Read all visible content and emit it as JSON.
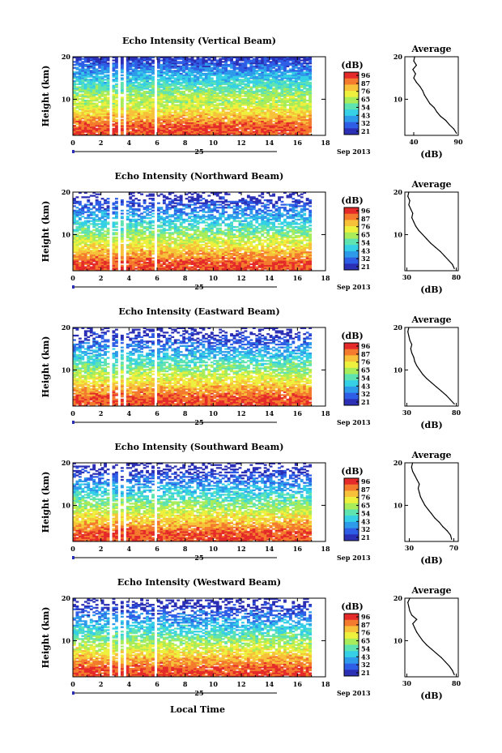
{
  "chart_data": {
    "type": "heatmap",
    "xaxis": {
      "label": "Local Time",
      "date_label": "Sep 2013",
      "day_label": "25",
      "ticks": [
        0,
        2,
        4,
        6,
        8,
        10,
        12,
        14,
        16,
        18
      ],
      "range": [
        0,
        18
      ]
    },
    "colorbar": {
      "unit": "(dB)",
      "ticks": [
        "96",
        "87",
        "76",
        "65",
        "54",
        "43",
        "32",
        "21"
      ],
      "range": [
        21,
        96
      ],
      "colors": [
        "#2b2fb5",
        "#2f5ee6",
        "#2e9bea",
        "#35d0e6",
        "#5fe3b0",
        "#a8ec5a",
        "#eef03e",
        "#f7c23a",
        "#f47a2e",
        "#e52a2a"
      ]
    },
    "panels": [
      {
        "title": "Echo Intensity (Vertical Beam)",
        "ylabel": "Height (km)",
        "yticks": [
          10,
          20
        ],
        "ylim": [
          1.5,
          20
        ],
        "gaps": [
          [
            2.6,
            2.9
          ],
          [
            3.3,
            3.5
          ],
          [
            3.7,
            3.9
          ],
          [
            5.8,
            6.0
          ]
        ],
        "data_end": 16.8,
        "profile": {
          "title": "Average",
          "xlabel": "(dB)",
          "xticks": [
            40,
            90
          ],
          "xlim": [
            30,
            90
          ],
          "points": [
            [
              2,
              88
            ],
            [
              3,
              85
            ],
            [
              4,
              80
            ],
            [
              5,
              76
            ],
            [
              6,
              70
            ],
            [
              7,
              66
            ],
            [
              8,
              63
            ],
            [
              9,
              58
            ],
            [
              10,
              55
            ],
            [
              11,
              52
            ],
            [
              12,
              50
            ],
            [
              13,
              47
            ],
            [
              14,
              43
            ],
            [
              15,
              40
            ],
            [
              16,
              42
            ],
            [
              17,
              39
            ],
            [
              18,
              43
            ],
            [
              19,
              40
            ],
            [
              20,
              41
            ]
          ]
        }
      },
      {
        "title": "Echo Intensity (Northward Beam)",
        "ylabel": "Height (km)",
        "yticks": [
          10,
          20
        ],
        "ylim": [
          1.5,
          20
        ],
        "gaps": [
          [
            2.6,
            2.9
          ],
          [
            3.3,
            3.5
          ],
          [
            3.7,
            3.9
          ],
          [
            5.8,
            6.0
          ]
        ],
        "data_end": 16.8,
        "profile": {
          "title": "Average",
          "xlabel": "(dB)",
          "xticks": [
            30,
            80
          ],
          "xlim": [
            28,
            82
          ],
          "points": [
            [
              2,
              78
            ],
            [
              3,
              76
            ],
            [
              4,
              72
            ],
            [
              5,
              68
            ],
            [
              6,
              64
            ],
            [
              7,
              59
            ],
            [
              8,
              54
            ],
            [
              9,
              50
            ],
            [
              10,
              46
            ],
            [
              11,
              42
            ],
            [
              12,
              39
            ],
            [
              13,
              37
            ],
            [
              14,
              35
            ],
            [
              15,
              36
            ],
            [
              16,
              34
            ],
            [
              17,
              32
            ],
            [
              18,
              33
            ],
            [
              19,
              31
            ],
            [
              20,
              32
            ]
          ]
        }
      },
      {
        "title": "Echo Intensity (Eastward Beam)",
        "ylabel": "Height (km)",
        "yticks": [
          10,
          20
        ],
        "ylim": [
          1.5,
          20
        ],
        "gaps": [
          [
            2.6,
            2.9
          ],
          [
            3.3,
            3.5
          ],
          [
            3.7,
            3.9
          ],
          [
            5.8,
            6.0
          ]
        ],
        "data_end": 16.8,
        "profile": {
          "title": "Average",
          "xlabel": "(dB)",
          "xticks": [
            30,
            80
          ],
          "xlim": [
            28,
            82
          ],
          "points": [
            [
              2,
              78
            ],
            [
              3,
              74
            ],
            [
              4,
              70
            ],
            [
              5,
              65
            ],
            [
              6,
              60
            ],
            [
              7,
              55
            ],
            [
              8,
              50
            ],
            [
              9,
              46
            ],
            [
              10,
              43
            ],
            [
              11,
              40
            ],
            [
              12,
              38
            ],
            [
              13,
              37
            ],
            [
              14,
              35
            ],
            [
              15,
              34
            ],
            [
              16,
              35
            ],
            [
              17,
              33
            ],
            [
              18,
              32
            ],
            [
              19,
              31
            ],
            [
              20,
              32
            ]
          ]
        }
      },
      {
        "title": "Echo Intensity (Southward Beam)",
        "ylabel": "Height (km)",
        "yticks": [
          10,
          20
        ],
        "ylim": [
          1.5,
          20
        ],
        "gaps": [
          [
            2.6,
            2.9
          ],
          [
            3.3,
            3.5
          ],
          [
            3.7,
            3.9
          ],
          [
            5.8,
            6.0
          ]
        ],
        "data_end": 16.8,
        "profile": {
          "title": "Average",
          "xlabel": "(dB)",
          "xticks": [
            30,
            70
          ],
          "xlim": [
            26,
            74
          ],
          "points": [
            [
              2,
              68
            ],
            [
              3,
              67
            ],
            [
              4,
              64
            ],
            [
              5,
              60
            ],
            [
              6,
              57
            ],
            [
              7,
              53
            ],
            [
              8,
              50
            ],
            [
              9,
              47
            ],
            [
              10,
              44
            ],
            [
              11,
              42
            ],
            [
              12,
              40
            ],
            [
              13,
              39
            ],
            [
              14,
              38
            ],
            [
              15,
              39
            ],
            [
              16,
              37
            ],
            [
              17,
              35
            ],
            [
              18,
              33
            ],
            [
              19,
              32
            ],
            [
              20,
              33
            ]
          ]
        }
      },
      {
        "title": "Echo Intensity (Westward Beam)",
        "ylabel": "Height (km)",
        "yticks": [
          10,
          20
        ],
        "ylim": [
          1.5,
          20
        ],
        "gaps": [
          [
            2.6,
            2.9
          ],
          [
            3.3,
            3.5
          ],
          [
            3.7,
            3.9
          ],
          [
            5.8,
            6.0
          ]
        ],
        "data_end": 16.8,
        "profile": {
          "title": "Average",
          "xlabel": "(dB)",
          "xticks": [
            30,
            80
          ],
          "xlim": [
            28,
            82
          ],
          "points": [
            [
              2,
              78
            ],
            [
              3,
              76
            ],
            [
              4,
              73
            ],
            [
              5,
              69
            ],
            [
              6,
              65
            ],
            [
              7,
              60
            ],
            [
              8,
              55
            ],
            [
              9,
              50
            ],
            [
              10,
              46
            ],
            [
              11,
              43
            ],
            [
              12,
              40
            ],
            [
              13,
              38
            ],
            [
              14,
              36
            ],
            [
              15,
              40
            ],
            [
              16,
              35
            ],
            [
              17,
              33
            ],
            [
              18,
              32
            ],
            [
              19,
              31
            ],
            [
              20,
              33
            ]
          ]
        }
      }
    ]
  }
}
